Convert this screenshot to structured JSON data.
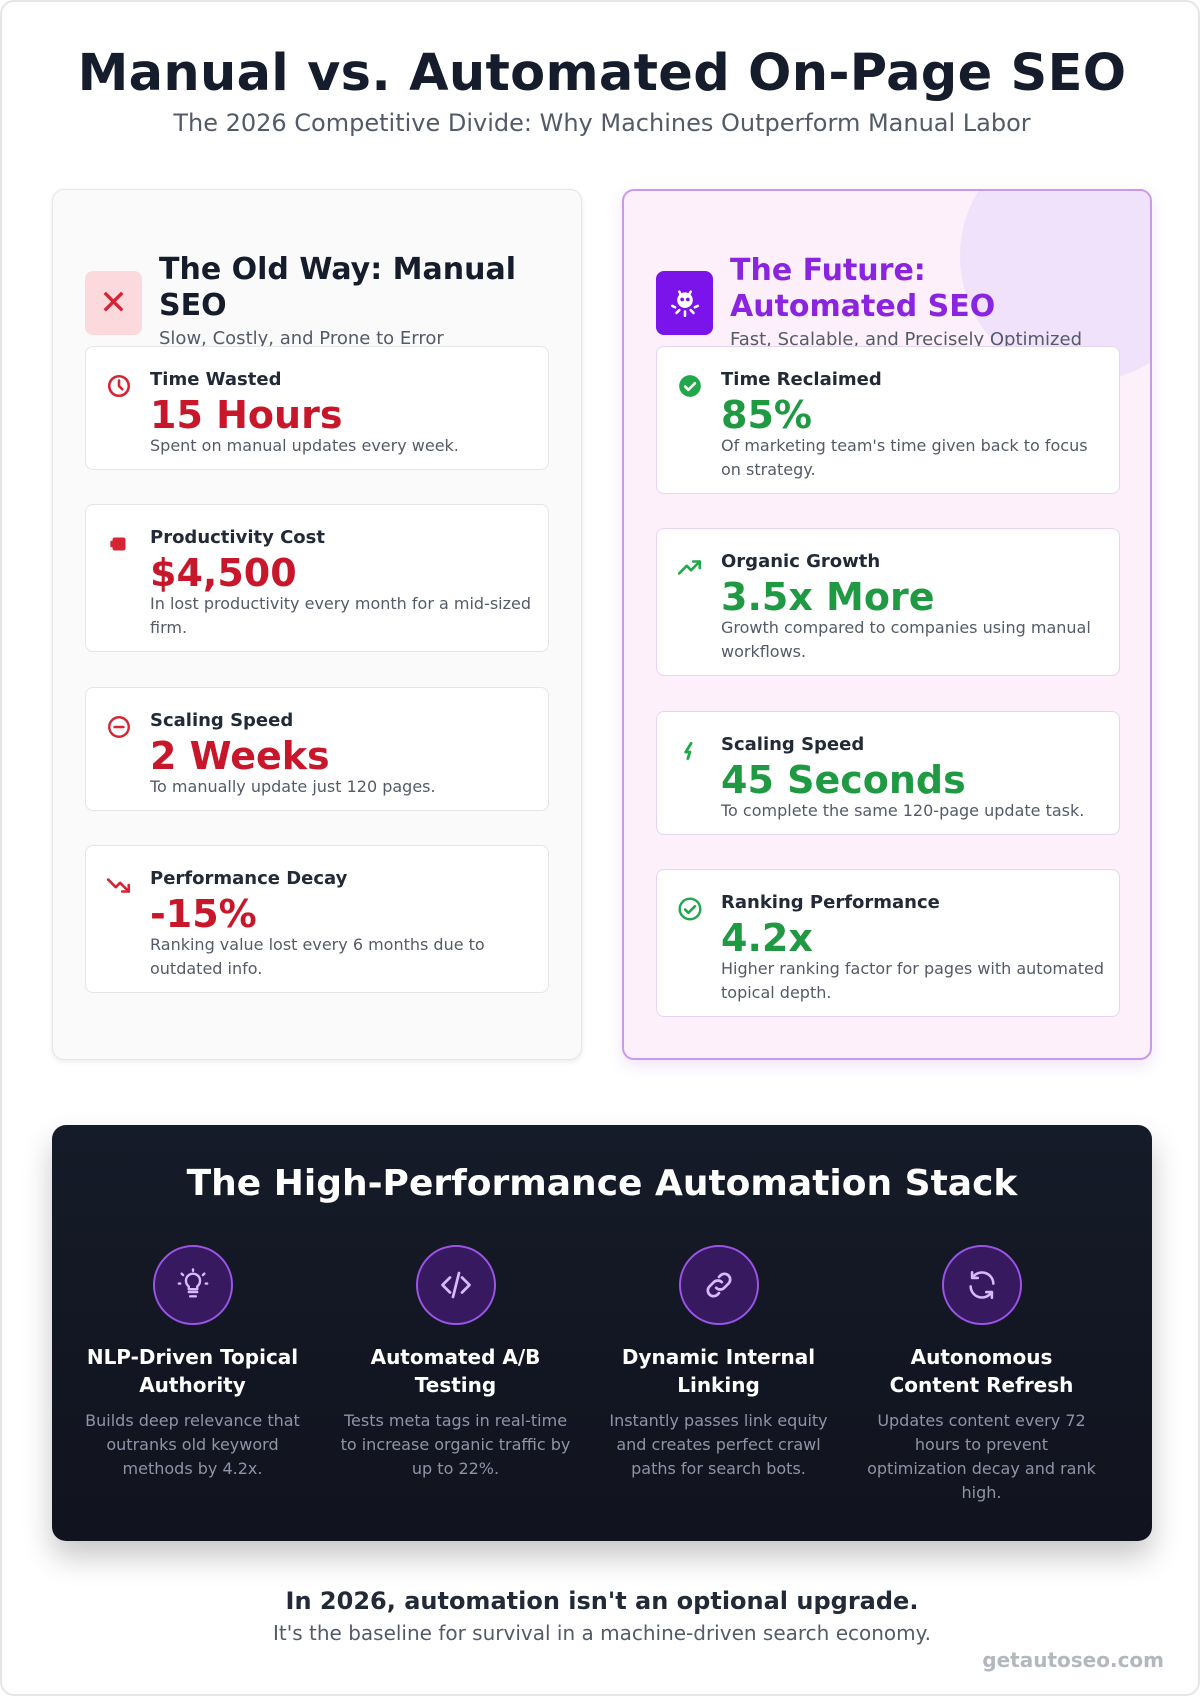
{
  "header": {
    "title": "Manual vs. Automated On-Page SEO",
    "subtitle": "The 2026 Competitive Divide: Why Machines Outperform Manual Labor"
  },
  "manual": {
    "title": "The Old Way: Manual SEO",
    "subtitle": "Slow, Costly, and Prone to Error",
    "icon": "x-icon",
    "accent": "#c8162a",
    "stats": [
      {
        "label": "Time Wasted",
        "value": "15 Hours",
        "desc": "Spent on manual updates every week.",
        "icon": "clock-icon"
      },
      {
        "label": "Productivity Cost",
        "value": "$4,500",
        "desc": "In lost productivity every month for a mid-sized firm.",
        "icon": "money-icon"
      },
      {
        "label": "Scaling Speed",
        "value": "2 Weeks",
        "desc": "To manually update just 120 pages.",
        "icon": "minus-circle-icon"
      },
      {
        "label": "Performance Decay",
        "value": "-15%",
        "desc": "Ranking value lost every 6 months due to outdated info.",
        "icon": "trend-down-icon"
      }
    ]
  },
  "automated": {
    "title": "The Future: Automated SEO",
    "subtitle": "Fast, Scalable, and Precisely Optimized",
    "icon": "robot-icon",
    "accent": "#1f9a42",
    "stats": [
      {
        "label": "Time Reclaimed",
        "value": "85%",
        "desc": "Of marketing team's time given back to focus on strategy.",
        "icon": "check-circle-icon"
      },
      {
        "label": "Organic Growth",
        "value": "3.5x More",
        "desc": "Growth compared to companies using manual workflows.",
        "icon": "trend-up-icon"
      },
      {
        "label": "Scaling Speed",
        "value": "45 Seconds",
        "desc": "To complete the same 120-page update task.",
        "icon": "bolt-icon"
      },
      {
        "label": "Ranking Performance",
        "value": "4.2x",
        "desc": "Higher ranking factor for pages with automated topical depth.",
        "icon": "check-outline-icon"
      }
    ]
  },
  "stack": {
    "title": "The High-Performance Automation Stack",
    "features": [
      {
        "title": "NLP-Driven Topical Authority",
        "desc": "Builds deep relevance that outranks old keyword methods by 4.2x.",
        "icon": "lightbulb-icon"
      },
      {
        "title": "Automated A/B Testing",
        "desc": "Tests meta tags in real-time to increase organic traffic by up to 22%.",
        "icon": "code-icon"
      },
      {
        "title": "Dynamic Internal Linking",
        "desc": "Instantly passes link equity and creates perfect crawl paths for search bots.",
        "icon": "link-icon"
      },
      {
        "title": "Autonomous Content Refresh",
        "desc": "Updates content every 72 hours to prevent optimization decay and rank high.",
        "icon": "refresh-icon"
      }
    ]
  },
  "footer": {
    "headline": "In 2026, automation isn't an optional upgrade.",
    "tagline": "It's the baseline for survival in a machine-driven search economy.",
    "brand": "getautoseo.com"
  }
}
